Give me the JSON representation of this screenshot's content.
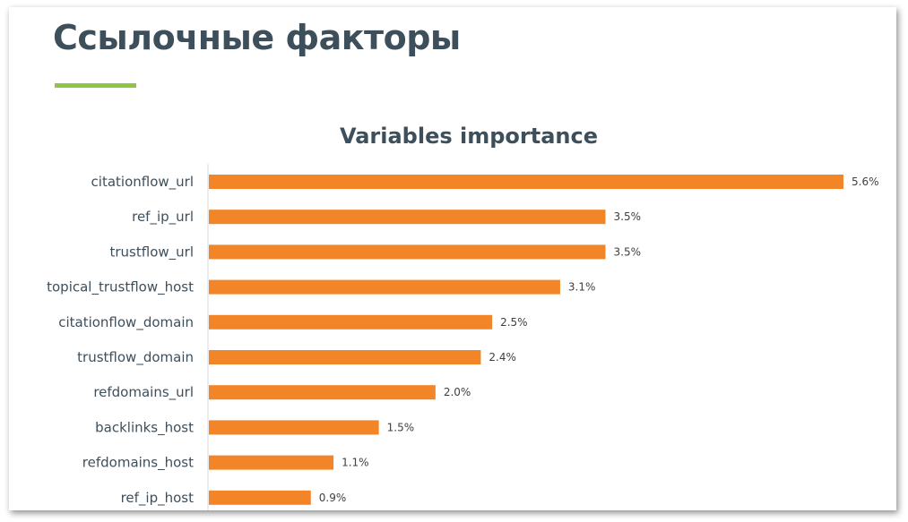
{
  "slide": {
    "title": "Ссылочные факторы",
    "accent_color": "#8dc63f",
    "text_color": "#3e4f5c"
  },
  "chart_data": {
    "type": "bar",
    "orientation": "horizontal",
    "title": "Variables importance",
    "categories": [
      "citationflow_url",
      "ref_ip_url",
      "trustflow_url",
      "topical_trustflow_host",
      "citationflow_domain",
      "trustflow_domain",
      "refdomains_url",
      "backlinks_host",
      "refdomains_host",
      "ref_ip_host"
    ],
    "values": [
      5.6,
      3.5,
      3.5,
      3.1,
      2.5,
      2.4,
      2.0,
      1.5,
      1.1,
      0.9
    ],
    "value_labels": [
      "5.6%",
      "3.5%",
      "3.5%",
      "3.1%",
      "2.5%",
      "2.4%",
      "2.0%",
      "1.5%",
      "1.1%",
      "0.9%"
    ],
    "xlabel": "",
    "ylabel": "",
    "xlim": [
      0,
      5.6
    ],
    "grid": false,
    "bar_color": "#f28527",
    "label_color": "#3e4f5c",
    "value_label_color": "#404040",
    "axis_color": "#d9d9d9"
  }
}
